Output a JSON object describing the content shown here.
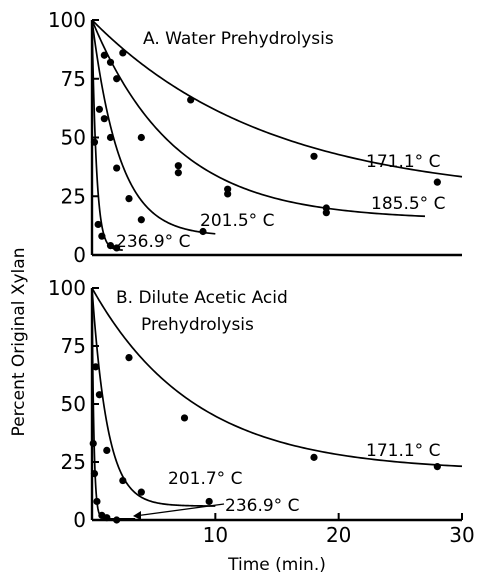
{
  "chart_data": [
    {
      "type": "scatter",
      "title": "A. Water Prehydrolysis",
      "xlabel": "Time (min.)",
      "ylabel": "Percent Original Xylan",
      "xlim": [
        0,
        30
      ],
      "ylim": [
        0,
        100
      ],
      "yticks": [
        "0",
        "25",
        "50",
        "75",
        "100"
      ],
      "series": [
        {
          "name": "171.1° C",
          "x": [
            0,
            2.5,
            8,
            18,
            28
          ],
          "y": [
            100,
            86,
            66,
            42,
            31
          ],
          "curve": {
            "k": 0.07,
            "b": 24,
            "xmax": 30
          }
        },
        {
          "name": "185.5° C",
          "x": [
            0,
            1,
            1.5,
            2,
            4,
            7,
            7,
            11,
            11,
            19,
            19
          ],
          "y": [
            100,
            85,
            82,
            75,
            50,
            38,
            35,
            28,
            26,
            20,
            18
          ],
          "curve": {
            "k": 0.15,
            "b": 15,
            "xmax": 27
          }
        },
        {
          "name": "201.5° C",
          "x": [
            0,
            0.6,
            1,
            1.5,
            2,
            3,
            4,
            9
          ],
          "y": [
            100,
            62,
            58,
            50,
            37,
            24,
            15,
            10
          ],
          "curve": {
            "k": 0.45,
            "b": 8,
            "xmax": 10
          }
        },
        {
          "name": "236.9° C",
          "x": [
            0,
            0.2,
            0.5,
            0.8,
            1.5,
            2
          ],
          "y": [
            100,
            48,
            13,
            8,
            4,
            3
          ],
          "curve": {
            "k": 2.8,
            "b": 2,
            "xmax": 2.5
          }
        }
      ]
    },
    {
      "type": "scatter",
      "title": "B. Dilute Acetic Acid Prehydrolysis",
      "title_lines": [
        "B. Dilute Acetic Acid",
        "Prehydrolysis"
      ],
      "xlabel": "Time (min.)",
      "ylabel": "Percent Original Xylan",
      "xlim": [
        0,
        30
      ],
      "ylim": [
        0,
        100
      ],
      "xticks": [
        "10",
        "20",
        "30"
      ],
      "yticks": [
        "0",
        "25",
        "50",
        "75",
        "100"
      ],
      "series": [
        {
          "name": "171.1° C",
          "x": [
            0,
            3,
            7.5,
            18,
            28
          ],
          "y": [
            100,
            70,
            44,
            27,
            23
          ],
          "curve": {
            "k": 0.12,
            "b": 21,
            "xmax": 30
          }
        },
        {
          "name": "201.7° C",
          "x": [
            0,
            0.3,
            0.6,
            1.2,
            2.5,
            4,
            9.5
          ],
          "y": [
            100,
            66,
            54,
            30,
            17,
            12,
            8
          ],
          "curve": {
            "k": 0.8,
            "b": 6,
            "xmax": 10
          }
        },
        {
          "name": "236.9° C",
          "x": [
            0,
            0.1,
            0.2,
            0.4,
            0.8,
            1.2,
            2
          ],
          "y": [
            100,
            33,
            20,
            8,
            2,
            1,
            0
          ],
          "curve": {
            "k": 6.5,
            "b": 0.5,
            "xmax": 3.5
          }
        }
      ]
    }
  ]
}
